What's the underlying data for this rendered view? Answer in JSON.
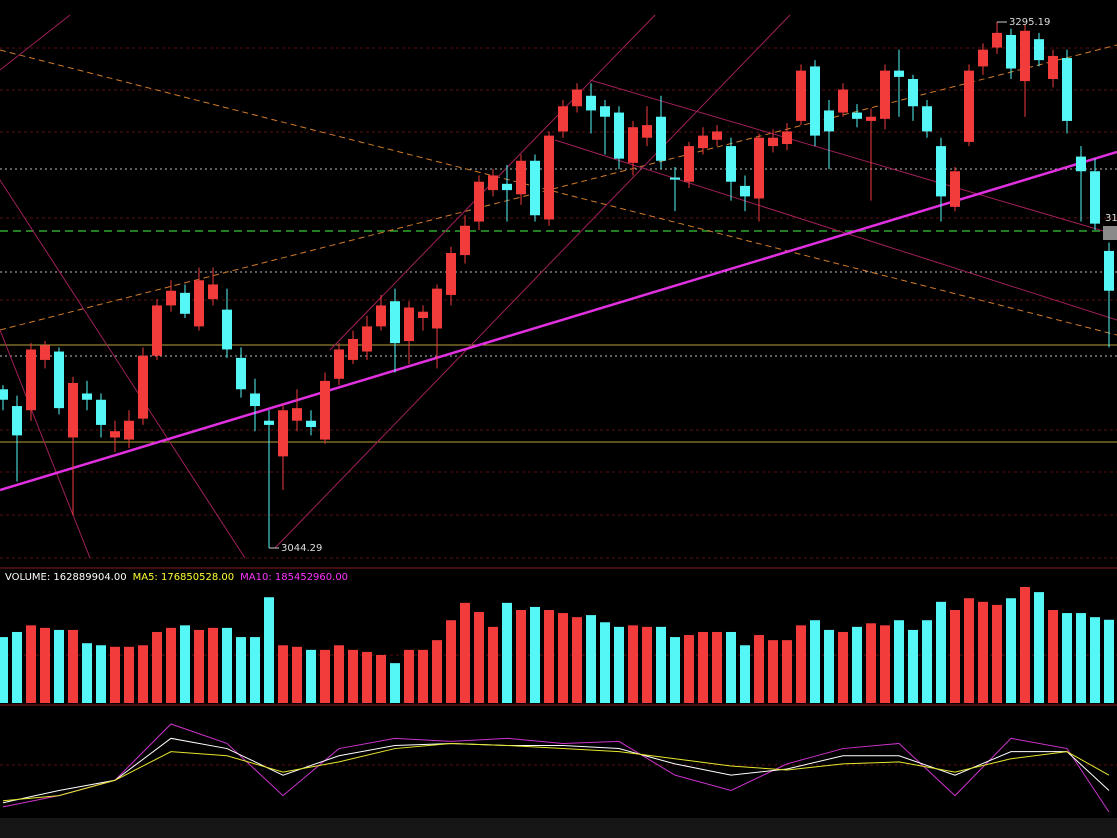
{
  "chart_data": [
    {
      "type": "candlestick",
      "up_color": "#f23b3b",
      "down_color": "#54f6f6",
      "high_note": 71,
      "low_note": 19,
      "open": [
        3120,
        3112,
        3110,
        3134,
        3138,
        3097,
        3118,
        3115,
        3097,
        3096,
        3106,
        3136,
        3160,
        3166,
        3150,
        3163,
        3158,
        3135,
        3118,
        3105,
        3088,
        3105,
        3105,
        3096,
        3125,
        3134,
        3138,
        3150,
        3162,
        3143,
        3154,
        3149,
        3165,
        3184,
        3200,
        3215,
        3218,
        3213,
        3229,
        3201,
        3243,
        3255,
        3260,
        3255,
        3252,
        3228,
        3240,
        3250,
        3221,
        3219,
        3235,
        3239,
        3236,
        3217,
        3211,
        3236,
        3237,
        3248,
        3274,
        3253,
        3252,
        3252,
        3248,
        3249,
        3272,
        3268,
        3255,
        3236,
        3207,
        3238,
        3274,
        3283,
        3289,
        3267,
        3287,
        3268,
        3278,
        3231,
        3224,
        3186
      ],
      "high": [
        3122,
        3117,
        3142,
        3143,
        3140,
        3126,
        3124,
        3118,
        3105,
        3110,
        3140,
        3163,
        3172,
        3170,
        3178,
        3178,
        3168,
        3140,
        3125,
        3110,
        3113,
        3120,
        3110,
        3128,
        3142,
        3148,
        3155,
        3165,
        3168,
        3162,
        3160,
        3170,
        3188,
        3203,
        3222,
        3225,
        3227,
        3232,
        3232,
        3243,
        3258,
        3266,
        3266,
        3258,
        3255,
        3248,
        3255,
        3260,
        3226,
        3238,
        3245,
        3246,
        3240,
        3222,
        3242,
        3244,
        3247,
        3275,
        3277,
        3258,
        3266,
        3256,
        3254,
        3275,
        3282,
        3270,
        3258,
        3240,
        3226,
        3275,
        3285,
        3295.19,
        3292,
        3294,
        3290,
        3282,
        3282,
        3236,
        3230,
        3190
      ],
      "low": [
        3110,
        3076,
        3105,
        3130,
        3108,
        3060,
        3110,
        3097,
        3090,
        3092,
        3103,
        3134,
        3157,
        3154,
        3148,
        3160,
        3135,
        3116,
        3100,
        3044.29,
        3072,
        3100,
        3098,
        3094,
        3122,
        3132,
        3134,
        3148,
        3128,
        3132,
        3148,
        3130,
        3160,
        3180,
        3196,
        3212,
        3200,
        3208,
        3200,
        3198,
        3240,
        3252,
        3242,
        3232,
        3225,
        3222,
        3236,
        3225,
        3205,
        3216,
        3232,
        3236,
        3210,
        3205,
        3200,
        3233,
        3234,
        3246,
        3236,
        3225,
        3250,
        3245,
        3210,
        3244,
        3250,
        3248,
        3240,
        3200,
        3205,
        3236,
        3270,
        3280,
        3268,
        3250,
        3274,
        3264,
        3242,
        3200,
        3196,
        3140
      ],
      "close": [
        3115,
        3098,
        3139,
        3141,
        3111,
        3123,
        3115,
        3103,
        3100,
        3105,
        3136,
        3160,
        3167,
        3156,
        3172,
        3170,
        3139,
        3120,
        3112,
        3103,
        3110,
        3111,
        3102,
        3124,
        3139,
        3144,
        3150,
        3160,
        3142,
        3159,
        3157,
        3168,
        3185,
        3198,
        3219,
        3222,
        3215,
        3229,
        3203,
        3241,
        3255,
        3263,
        3253,
        3250,
        3230,
        3245,
        3246,
        3229,
        3220,
        3236,
        3241,
        3243,
        3219,
        3212,
        3240,
        3240,
        3243,
        3272,
        3241,
        3243,
        3263,
        3249,
        3250,
        3272,
        3269,
        3255,
        3243,
        3212,
        3224,
        3272,
        3282,
        3290,
        3273,
        3291,
        3277,
        3279,
        3248,
        3224,
        3199,
        3167
      ],
      "price_tag": "31"
    },
    {
      "type": "bar",
      "legend": [
        "VOLUME: 162889904.00",
        "MA5: 176850528.00",
        "MA10: 185452960.00"
      ],
      "legend_colors": [
        "#ffffff",
        "#ffff33",
        "#ff33ff"
      ],
      "values": [
        129000000,
        139000000,
        152000000,
        147000000,
        143000000,
        143000000,
        117000000,
        113000000,
        110000000,
        110000000,
        113000000,
        139000000,
        147000000,
        152000000,
        143000000,
        147000000,
        147000000,
        129000000,
        129000000,
        207000000,
        113000000,
        110000000,
        104000000,
        104000000,
        113000000,
        104000000,
        100000000,
        94000000,
        78000000,
        104000000,
        104000000,
        123000000,
        162000000,
        196000000,
        178000000,
        149000000,
        196000000,
        182000000,
        188000000,
        182000000,
        176000000,
        168000000,
        172000000,
        158000000,
        149000000,
        152000000,
        149000000,
        149000000,
        129000000,
        133000000,
        139000000,
        139000000,
        139000000,
        113000000,
        133000000,
        123000000,
        123000000,
        152000000,
        162000000,
        143000000,
        139000000,
        149000000,
        156000000,
        152000000,
        162000000,
        143000000,
        162000000,
        198000000,
        182000000,
        205000000,
        198000000,
        192000000,
        205000000,
        227000000,
        217000000,
        182000000,
        176000000,
        176000000,
        168000000,
        162889904
      ]
    },
    {
      "type": "line",
      "x": [
        0,
        4,
        8,
        12,
        16,
        20,
        24,
        28,
        32,
        36,
        40,
        44,
        48,
        52,
        56,
        60,
        64,
        68,
        72,
        76,
        79
      ],
      "series": [
        {
          "color": "#cc33cc",
          "values": [
            15,
            26,
            41,
            96,
            77,
            26,
            72,
            82,
            79,
            82,
            77,
            79,
            46,
            31,
            57,
            72,
            77,
            26,
            82,
            72,
            10
          ]
        },
        {
          "color": "#ffffff",
          "values": [
            19,
            31,
            41,
            82,
            72,
            46,
            65,
            75,
            77,
            75,
            75,
            72,
            57,
            46,
            52,
            65,
            65,
            46,
            69,
            69,
            31
          ]
        },
        {
          "color": "#e6e62e",
          "values": [
            21,
            26,
            41,
            69,
            65,
            49,
            59,
            72,
            77,
            75,
            72,
            69,
            62,
            55,
            51,
            57,
            59,
            49,
            62,
            69,
            46
          ]
        }
      ]
    }
  ]
}
